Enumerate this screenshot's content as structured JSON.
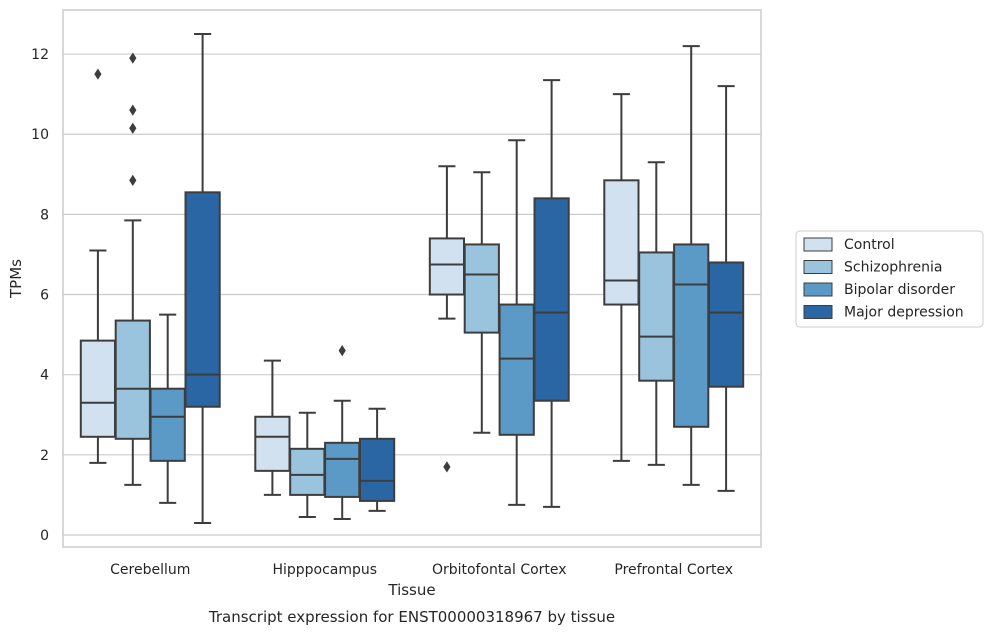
{
  "caption": "Transcript expression for ENST00000318967 by tissue",
  "chart_data": {
    "type": "box",
    "xlabel": "Tissue",
    "ylabel": "TPMs",
    "ylim": [
      -0.3,
      13.1
    ],
    "yticks": [
      0,
      2,
      4,
      6,
      8,
      10,
      12
    ],
    "grid": "horizontal",
    "legend_position": "right",
    "categories": [
      "Cerebellum",
      "Hipppocampus",
      "Orbitofontal Cortex",
      "Prefrontal Cortex"
    ],
    "series": [
      {
        "name": "Control",
        "color": "#d2e1f0",
        "boxes": [
          {
            "whisker_low": 1.8,
            "q1": 2.45,
            "median": 3.3,
            "q3": 4.85,
            "whisker_high": 7.1,
            "outliers": [
              11.5
            ]
          },
          {
            "whisker_low": 1.0,
            "q1": 1.6,
            "median": 2.45,
            "q3": 2.95,
            "whisker_high": 4.35,
            "outliers": []
          },
          {
            "whisker_low": 5.4,
            "q1": 6.0,
            "median": 6.75,
            "q3": 7.4,
            "whisker_high": 9.2,
            "outliers": [
              1.7
            ]
          },
          {
            "whisker_low": 1.85,
            "q1": 5.75,
            "median": 6.35,
            "q3": 8.85,
            "whisker_high": 11.0,
            "outliers": []
          }
        ]
      },
      {
        "name": "Schizophrenia",
        "color": "#9ac4de",
        "boxes": [
          {
            "whisker_low": 1.25,
            "q1": 2.4,
            "median": 3.65,
            "q3": 5.35,
            "whisker_high": 7.85,
            "outliers": [
              8.85,
              10.15,
              10.6,
              11.9
            ]
          },
          {
            "whisker_low": 0.45,
            "q1": 1.0,
            "median": 1.5,
            "q3": 2.15,
            "whisker_high": 3.05,
            "outliers": []
          },
          {
            "whisker_low": 2.55,
            "q1": 5.05,
            "median": 6.5,
            "q3": 7.25,
            "whisker_high": 9.05,
            "outliers": []
          },
          {
            "whisker_low": 1.75,
            "q1": 3.85,
            "median": 4.95,
            "q3": 7.05,
            "whisker_high": 9.3,
            "outliers": []
          }
        ]
      },
      {
        "name": "Bipolar disorder",
        "color": "#5b9ac6",
        "boxes": [
          {
            "whisker_low": 0.8,
            "q1": 1.85,
            "median": 2.95,
            "q3": 3.65,
            "whisker_high": 5.5,
            "outliers": []
          },
          {
            "whisker_low": 0.4,
            "q1": 0.95,
            "median": 1.9,
            "q3": 2.3,
            "whisker_high": 3.35,
            "outliers": [
              4.6
            ]
          },
          {
            "whisker_low": 0.75,
            "q1": 2.5,
            "median": 4.4,
            "q3": 5.75,
            "whisker_high": 9.85,
            "outliers": []
          },
          {
            "whisker_low": 1.25,
            "q1": 2.7,
            "median": 6.25,
            "q3": 7.25,
            "whisker_high": 12.2,
            "outliers": []
          }
        ]
      },
      {
        "name": "Major depression",
        "color": "#2a66a4",
        "boxes": [
          {
            "whisker_low": 0.3,
            "q1": 3.2,
            "median": 4.0,
            "q3": 8.55,
            "whisker_high": 12.5,
            "outliers": []
          },
          {
            "whisker_low": 0.6,
            "q1": 0.85,
            "median": 1.35,
            "q3": 2.4,
            "whisker_high": 3.15,
            "outliers": []
          },
          {
            "whisker_low": 0.7,
            "q1": 3.35,
            "median": 5.55,
            "q3": 8.4,
            "whisker_high": 11.35,
            "outliers": []
          },
          {
            "whisker_low": 1.1,
            "q1": 3.7,
            "median": 5.55,
            "q3": 6.8,
            "whisker_high": 11.2,
            "outliers": []
          }
        ]
      }
    ]
  }
}
